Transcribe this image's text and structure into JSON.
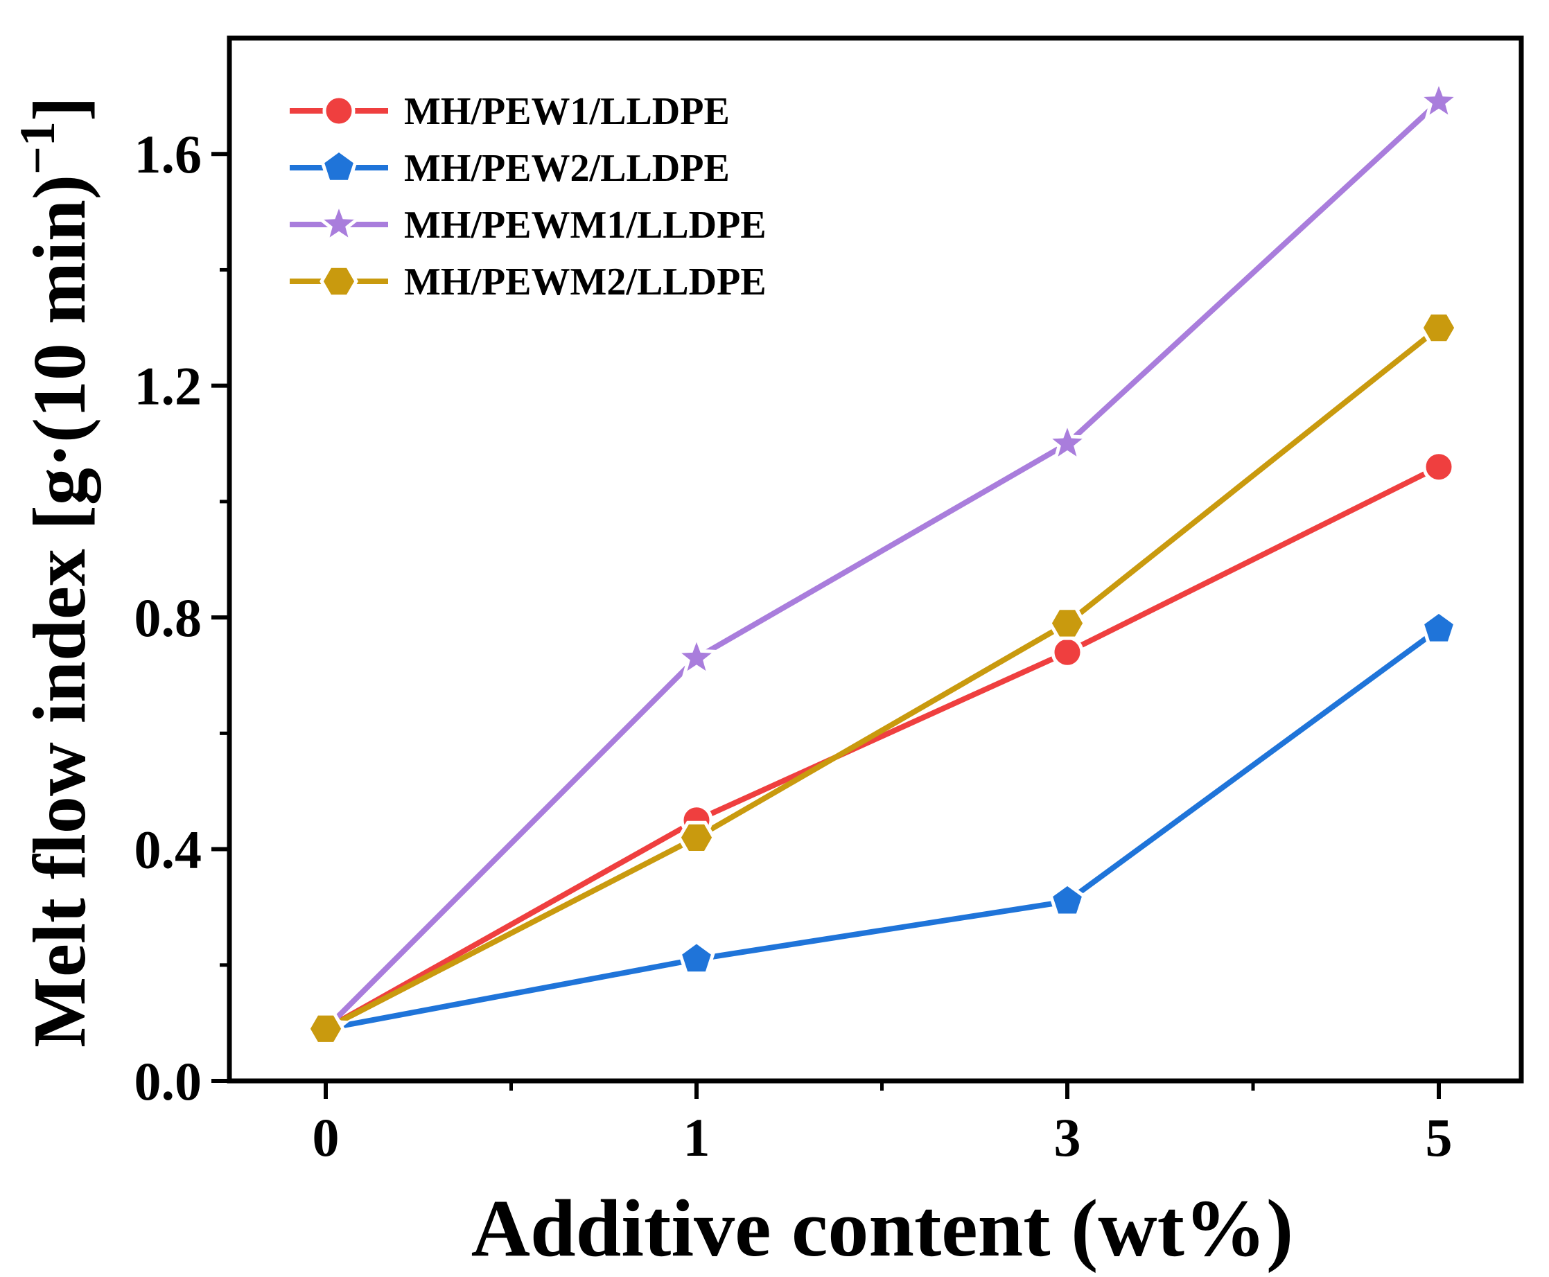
{
  "chart_data": {
    "type": "line",
    "title": "",
    "xlabel": "Additive content (wt%)",
    "ylabel": "Melt flow index [g·(10 min)",
    "ylabel_sup": "−1",
    "ylabel_close": "]",
    "categories": [
      "0",
      "1",
      "3",
      "5"
    ],
    "ylim": [
      0,
      1.8
    ],
    "yticks": [
      0.0,
      0.4,
      0.8,
      1.2,
      1.6
    ],
    "ytick_labels": [
      "0.0",
      "0.4",
      "0.8",
      "1.2",
      "1.6"
    ],
    "legend_position": "top-left",
    "grid": false,
    "series": [
      {
        "name": "MH/PEW1/LLDPE",
        "marker": "circle",
        "color": "#ef3f3f",
        "values": [
          0.09,
          0.45,
          0.74,
          1.06
        ]
      },
      {
        "name": "MH/PEW2/LLDPE",
        "marker": "pentagon",
        "color": "#1f74d9",
        "values": [
          0.09,
          0.21,
          0.31,
          0.78
        ]
      },
      {
        "name": "MH/PEWM1/LLDPE",
        "marker": "star",
        "color": "#a97ddc",
        "values": [
          0.09,
          0.73,
          1.1,
          1.69
        ]
      },
      {
        "name": "MH/PEWM2/LLDPE",
        "marker": "hexagon",
        "color": "#c99a0e",
        "values": [
          0.09,
          0.42,
          0.79,
          1.3
        ]
      }
    ]
  }
}
